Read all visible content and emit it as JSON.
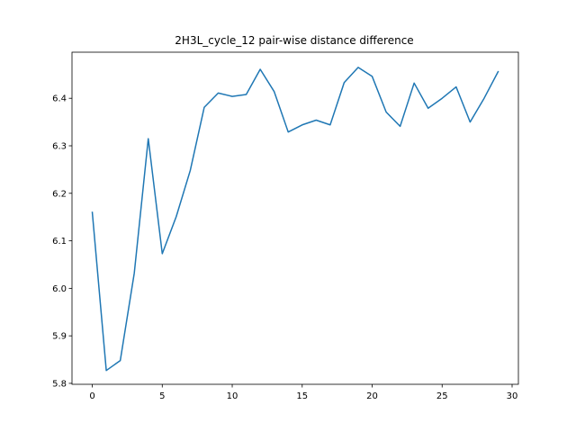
{
  "chart_data": {
    "type": "line",
    "title": "2H3L_cycle_12 pair-wise distance difference",
    "xlabel": "",
    "ylabel": "",
    "xlim": [
      -1.45,
      30.45
    ],
    "ylim": [
      5.798,
      6.497
    ],
    "xticks": [
      0,
      5,
      10,
      15,
      20,
      25,
      30
    ],
    "yticks": [
      5.8,
      5.9,
      6.0,
      6.1,
      6.2,
      6.3,
      6.4
    ],
    "ytick_labels": [
      "5.8",
      "5.9",
      "6.0",
      "6.1",
      "6.2",
      "6.3",
      "6.4"
    ],
    "grid": false,
    "legend": "none",
    "series": [
      {
        "color": "#1f77b4",
        "x": [
          0,
          1,
          2,
          3,
          4,
          5,
          6,
          7,
          8,
          9,
          10,
          11,
          12,
          13,
          14,
          15,
          16,
          17,
          18,
          19,
          20,
          21,
          22,
          23,
          24,
          25,
          26,
          27,
          28,
          29
        ],
        "values": [
          6.16,
          5.827,
          5.848,
          6.032,
          6.315,
          6.073,
          6.151,
          6.248,
          6.381,
          6.411,
          6.404,
          6.408,
          6.461,
          6.414,
          6.329,
          6.344,
          6.354,
          6.344,
          6.433,
          6.465,
          6.446,
          6.371,
          6.341,
          6.432,
          6.379,
          6.4,
          6.424,
          6.35,
          6.4,
          6.456
        ]
      }
    ]
  }
}
